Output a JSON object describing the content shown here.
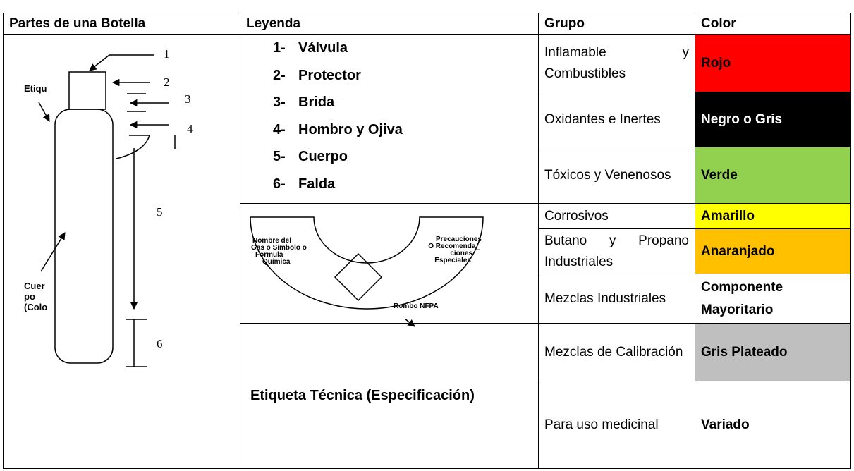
{
  "table": {
    "headers": [
      "Partes de una Botella",
      "Leyenda",
      "Grupo",
      "Color"
    ],
    "legend": [
      {
        "num": "1-",
        "text": "Válvula"
      },
      {
        "num": "2-",
        "text": "Protector"
      },
      {
        "num": "3-",
        "text": "Brida"
      },
      {
        "num": "4-",
        "text": "Hombro y Ojiva"
      },
      {
        "num": "5-",
        "text": "Cuerpo"
      },
      {
        "num": "6-",
        "text": "Falda"
      }
    ],
    "groups": [
      {
        "group": "Inflamable y Combustibles",
        "color": "Rojo",
        "fill": "#ff0000"
      },
      {
        "group": "Oxidantes e Inertes",
        "color": "Negro o Gris",
        "fill": "#000000"
      },
      {
        "group": "Tóxicos y Venenosos",
        "color": "Verde",
        "fill": "#92d050"
      },
      {
        "group": "Corrosivos",
        "color": "Amarillo",
        "fill": "#ffff00"
      },
      {
        "group": "Butano y Propano Industriales",
        "color": "Anaranjado",
        "fill": "#ffc000"
      },
      {
        "group": "Mezclas Industriales",
        "color": "Componente Mayoritario",
        "fill": "#ffffff"
      },
      {
        "group": "Mezclas de Calibración",
        "color": "Gris Plateado",
        "fill": "#bfbfbf"
      },
      {
        "group": "Para uso medicinal",
        "color": "Variado",
        "fill": "#ffffff"
      }
    ],
    "technical_label": "Etiqueta Técnica (Especificación)"
  },
  "bottle": {
    "numbers": [
      "1",
      "2",
      "3",
      "4",
      "5",
      "6"
    ],
    "etiqueta": "Etiqu",
    "cuerpo": [
      "Cuer",
      "po",
      "(Colo"
    ]
  },
  "label_diagram": {
    "left": [
      "Nombre del",
      "Gas o Símbolo o",
      "Formula",
      "Química"
    ],
    "right": [
      "Precauciones",
      "O Recomenda_",
      "ciones",
      "Especiales"
    ],
    "rombo": "Rombo NFPA"
  }
}
